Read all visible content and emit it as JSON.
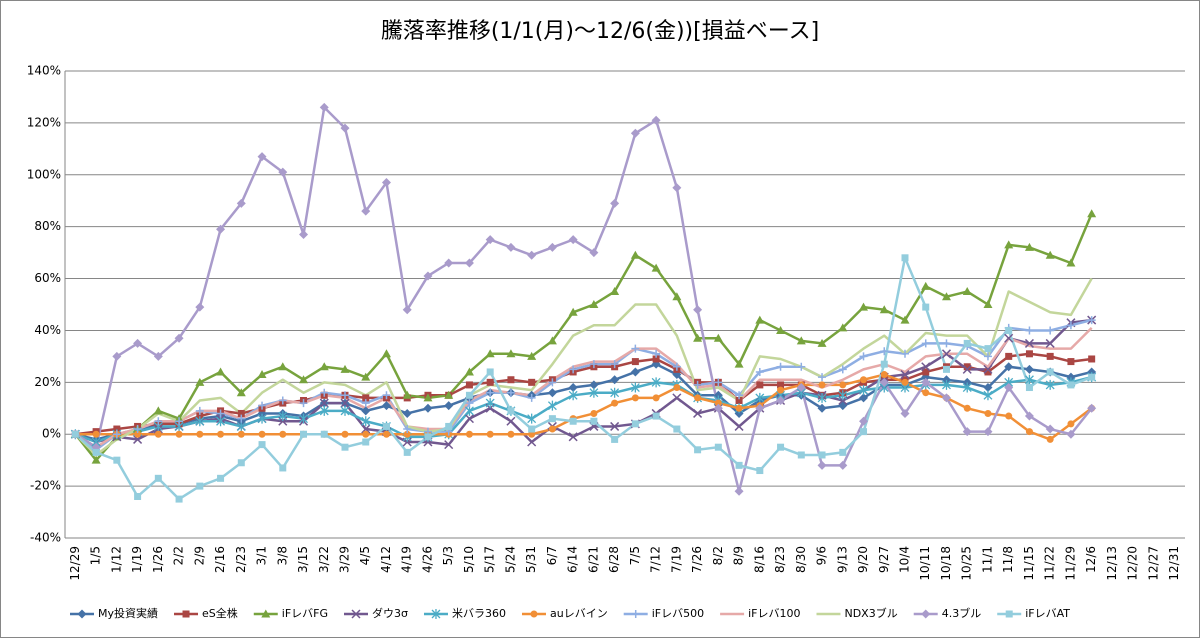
{
  "chart_data": {
    "type": "line",
    "title": "騰落率推移(1/1(月)～12/6(金))[損益ベース]",
    "categories": [
      "12/29",
      "1/5",
      "1/12",
      "1/19",
      "1/26",
      "2/2",
      "2/9",
      "2/16",
      "2/23",
      "3/1",
      "3/8",
      "3/15",
      "3/22",
      "3/29",
      "4/5",
      "4/12",
      "4/19",
      "4/26",
      "5/3",
      "5/10",
      "5/17",
      "5/24",
      "5/31",
      "6/7",
      "6/14",
      "6/21",
      "6/28",
      "7/5",
      "7/12",
      "7/19",
      "7/26",
      "8/2",
      "8/9",
      "8/16",
      "8/23",
      "8/30",
      "9/6",
      "9/13",
      "9/20",
      "9/27",
      "10/4",
      "10/11",
      "10/18",
      "10/25",
      "11/1",
      "11/8",
      "11/15",
      "11/22",
      "11/29",
      "12/6",
      "12/13",
      "12/20",
      "12/27",
      "12/31"
    ],
    "ylim": [
      -40,
      140
    ],
    "yticks": [
      {
        "value": -40,
        "label": "-40%"
      },
      {
        "value": -20,
        "label": "-20%"
      },
      {
        "value": 0,
        "label": "0%"
      },
      {
        "value": 20,
        "label": "20%"
      },
      {
        "value": 40,
        "label": "40%"
      },
      {
        "value": 60,
        "label": "60%"
      },
      {
        "value": 80,
        "label": "80%"
      },
      {
        "value": 100,
        "label": "100%"
      },
      {
        "value": 120,
        "label": "120%"
      },
      {
        "value": 140,
        "label": "140%"
      }
    ],
    "grid": true,
    "legend": "bottom",
    "series": [
      {
        "name": "My投資実績",
        "color": "#4572a7",
        "marker": "diamond",
        "values": [
          0,
          -2,
          0,
          1,
          4,
          4,
          6,
          7,
          5,
          8,
          8,
          7,
          12,
          12,
          9,
          11,
          8,
          10,
          11,
          14,
          16,
          16,
          15,
          16,
          18,
          19,
          21,
          24,
          27,
          23,
          15,
          15,
          8,
          13,
          15,
          15,
          10,
          11,
          14,
          19,
          19,
          22,
          21,
          20,
          18,
          26,
          25,
          24,
          22,
          24,
          null,
          null,
          null,
          null
        ]
      },
      {
        "name": "eS全株",
        "color": "#aa4643",
        "marker": "square",
        "values": [
          0,
          1,
          2,
          3,
          4,
          4,
          7,
          9,
          8,
          10,
          12,
          13,
          15,
          15,
          14,
          14,
          14,
          15,
          15,
          19,
          20,
          21,
          20,
          21,
          24,
          26,
          26,
          28,
          29,
          25,
          20,
          20,
          13,
          19,
          19,
          19,
          15,
          16,
          20,
          21,
          21,
          24,
          26,
          26,
          24,
          30,
          31,
          30,
          28,
          29,
          null,
          null,
          null,
          null
        ]
      },
      {
        "name": "iFレバFG",
        "color": "#77a33d",
        "marker": "triangle",
        "values": [
          0,
          -10,
          -1,
          2,
          9,
          6,
          20,
          24,
          16,
          23,
          26,
          21,
          26,
          25,
          22,
          31,
          15,
          14,
          15,
          24,
          31,
          31,
          30,
          36,
          47,
          50,
          55,
          69,
          64,
          53,
          37,
          37,
          27,
          44,
          40,
          36,
          35,
          41,
          49,
          48,
          44,
          57,
          53,
          55,
          50,
          73,
          72,
          69,
          66,
          85,
          null,
          null,
          null,
          null
        ]
      },
      {
        "name": "ダウ3σ",
        "color": "#71588f",
        "marker": "x",
        "values": [
          0,
          -3,
          -1,
          -2,
          2,
          3,
          5,
          6,
          3,
          6,
          5,
          5,
          12,
          12,
          2,
          1,
          -3,
          -3,
          -4,
          6,
          10,
          5,
          -3,
          3,
          -1,
          3,
          3,
          4,
          8,
          14,
          8,
          10,
          3,
          10,
          13,
          16,
          15,
          13,
          17,
          22,
          23,
          26,
          31,
          25,
          25,
          37,
          35,
          35,
          43,
          44,
          null,
          null,
          null,
          null
        ]
      },
      {
        "name": "米バラ360",
        "color": "#4bacc6",
        "marker": "star",
        "values": [
          0,
          -3,
          0,
          1,
          3,
          3,
          5,
          5,
          3,
          6,
          7,
          6,
          9,
          9,
          5,
          3,
          -1,
          -1,
          0,
          9,
          12,
          9,
          6,
          11,
          15,
          16,
          16,
          18,
          20,
          19,
          14,
          13,
          10,
          14,
          15,
          16,
          14,
          15,
          17,
          18,
          18,
          19,
          19,
          18,
          15,
          20,
          21,
          19,
          20,
          22,
          null,
          null,
          null,
          null
        ]
      },
      {
        "name": "auレバイン",
        "color": "#f18f36",
        "marker": "circle",
        "values": [
          0,
          0,
          0,
          0,
          0,
          0,
          0,
          0,
          0,
          0,
          0,
          0,
          0,
          0,
          0,
          0,
          0,
          0,
          0,
          0,
          0,
          0,
          0,
          2,
          6,
          8,
          12,
          14,
          14,
          18,
          14,
          12,
          10,
          11,
          17,
          19,
          19,
          19,
          21,
          23,
          20,
          16,
          14,
          10,
          8,
          7,
          1,
          -2,
          4,
          10,
          null,
          null,
          null,
          null
        ]
      },
      {
        "name": "iFレバ500",
        "color": "#8eaee3",
        "marker": "plus",
        "values": [
          0,
          -6,
          0,
          2,
          5,
          5,
          9,
          8,
          6,
          11,
          13,
          12,
          16,
          15,
          12,
          15,
          2,
          1,
          1,
          12,
          16,
          16,
          14,
          20,
          25,
          27,
          27,
          33,
          31,
          26,
          19,
          20,
          15,
          24,
          26,
          26,
          22,
          25,
          30,
          32,
          31,
          35,
          35,
          34,
          30,
          41,
          40,
          40,
          42,
          44,
          null,
          null,
          null,
          null
        ]
      },
      {
        "name": "iFレバ100",
        "color": "#e6a9a8",
        "marker": "none",
        "values": [
          0,
          -5,
          0,
          2,
          5,
          5,
          9,
          9,
          6,
          10,
          13,
          12,
          15,
          14,
          10,
          14,
          3,
          2,
          2,
          13,
          17,
          16,
          15,
          21,
          26,
          28,
          28,
          33,
          33,
          27,
          18,
          19,
          13,
          21,
          21,
          21,
          18,
          21,
          25,
          27,
          24,
          30,
          31,
          31,
          26,
          37,
          34,
          33,
          33,
          41,
          null,
          null,
          null,
          null
        ]
      },
      {
        "name": "NDX3ブル",
        "color": "#c3d69b",
        "marker": "none",
        "values": [
          0,
          -8,
          -2,
          2,
          8,
          5,
          13,
          14,
          8,
          16,
          21,
          16,
          20,
          19,
          15,
          20,
          3,
          1,
          2,
          15,
          19,
          18,
          17,
          27,
          38,
          42,
          42,
          50,
          50,
          38,
          17,
          18,
          13,
          30,
          29,
          26,
          22,
          27,
          33,
          38,
          31,
          39,
          38,
          38,
          30,
          55,
          51,
          47,
          46,
          60,
          null,
          null,
          null,
          null
        ]
      },
      {
        "name": "4.3ブル",
        "color": "#a99bcb",
        "marker": "diamond",
        "values": [
          0,
          -5,
          30,
          35,
          30,
          37,
          49,
          79,
          89,
          107,
          101,
          77,
          126,
          118,
          86,
          97,
          48,
          61,
          66,
          66,
          75,
          72,
          69,
          72,
          75,
          70,
          89,
          116,
          121,
          95,
          48,
          10,
          -22,
          10,
          13,
          18,
          -12,
          -12,
          5,
          20,
          8,
          20,
          14,
          1,
          1,
          18,
          7,
          2,
          0,
          10,
          null,
          null,
          null,
          null
        ]
      },
      {
        "name": "iFレバAT",
        "color": "#93cddd",
        "marker": "square",
        "values": [
          0,
          -7,
          -10,
          -24,
          -17,
          -25,
          -20,
          -17,
          -11,
          -4,
          -13,
          0,
          0,
          -5,
          -3,
          3,
          -7,
          -1,
          3,
          15,
          24,
          9,
          2,
          6,
          5,
          5,
          -2,
          4,
          7,
          2,
          -6,
          -5,
          -12,
          -14,
          -5,
          -8,
          -8,
          -7,
          1,
          27,
          68,
          49,
          25,
          35,
          33,
          40,
          18,
          24,
          19,
          22,
          null,
          null,
          null,
          null
        ]
      }
    ]
  }
}
